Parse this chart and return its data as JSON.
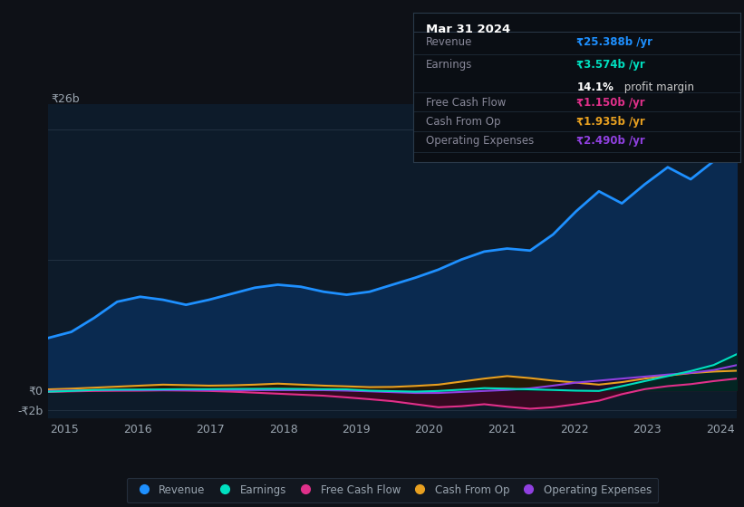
{
  "bg_color": "#0e1117",
  "plot_bg_color": "#0d1b2a",
  "grid_color": "#253545",
  "text_color": "#9aa5b0",
  "ylim": [
    -2.8,
    28.5
  ],
  "xtick_labels": [
    "2015",
    "2016",
    "2017",
    "2018",
    "2019",
    "2020",
    "2021",
    "2022",
    "2023",
    "2024"
  ],
  "revenue": [
    5.2,
    5.8,
    7.2,
    8.8,
    9.3,
    9.0,
    8.5,
    9.0,
    9.6,
    10.2,
    10.5,
    10.3,
    9.8,
    9.5,
    9.8,
    10.5,
    11.2,
    12.0,
    13.0,
    13.8,
    14.1,
    13.9,
    15.5,
    17.8,
    19.8,
    18.6,
    20.5,
    22.2,
    21.0,
    22.8,
    25.4
  ],
  "earnings": [
    -0.15,
    -0.08,
    0.02,
    0.05,
    0.06,
    0.08,
    0.1,
    0.1,
    0.12,
    0.13,
    0.14,
    0.12,
    0.1,
    0.08,
    -0.05,
    -0.1,
    -0.15,
    -0.08,
    0.05,
    0.2,
    0.15,
    0.08,
    0.02,
    -0.05,
    -0.08,
    0.4,
    0.9,
    1.4,
    1.9,
    2.5,
    3.574
  ],
  "free_cash_flow": [
    -0.18,
    -0.12,
    -0.08,
    -0.06,
    -0.05,
    -0.02,
    -0.04,
    -0.08,
    -0.15,
    -0.25,
    -0.35,
    -0.45,
    -0.55,
    -0.72,
    -0.9,
    -1.1,
    -1.4,
    -1.7,
    -1.6,
    -1.4,
    -1.65,
    -1.85,
    -1.7,
    -1.4,
    -1.05,
    -0.4,
    0.1,
    0.4,
    0.6,
    0.9,
    1.15
  ],
  "cash_from_op": [
    0.08,
    0.15,
    0.25,
    0.35,
    0.45,
    0.55,
    0.5,
    0.45,
    0.48,
    0.55,
    0.65,
    0.55,
    0.45,
    0.38,
    0.3,
    0.32,
    0.42,
    0.55,
    0.85,
    1.15,
    1.4,
    1.2,
    0.95,
    0.75,
    0.55,
    0.8,
    1.15,
    1.45,
    1.7,
    1.85,
    1.935
  ],
  "operating_expenses": [
    -0.08,
    -0.04,
    0.0,
    0.0,
    0.0,
    0.0,
    0.0,
    0.0,
    0.0,
    0.0,
    0.0,
    0.0,
    0.0,
    -0.05,
    -0.12,
    -0.2,
    -0.28,
    -0.28,
    -0.18,
    -0.08,
    0.02,
    0.18,
    0.45,
    0.75,
    0.95,
    1.15,
    1.35,
    1.55,
    1.72,
    2.0,
    2.49
  ],
  "revenue_color": "#1e90ff",
  "revenue_fill": "#0a2a50",
  "earnings_color": "#00e0c0",
  "earnings_fill": "#002a22",
  "fcf_color": "#e0308a",
  "fcf_fill": "#3a0820",
  "cfo_color": "#e8a020",
  "cfo_fill": "#2a1800",
  "opex_color": "#9040e0",
  "opex_fill": "#1a0a30",
  "tooltip_bg": "#0a0e14",
  "tooltip_border": "#2a3a4a",
  "tooltip_date": "Mar 31 2024",
  "tooltip_revenue_val": "₹25.388b /yr",
  "tooltip_earnings_val": "₹3.574b /yr",
  "tooltip_margin_bold": "14.1%",
  "tooltip_margin_rest": " profit margin",
  "tooltip_fcf_val": "₹1.150b /yr",
  "tooltip_cfo_val": "₹1.935b /yr",
  "tooltip_opex_val": "₹2.490b /yr",
  "legend_items": [
    {
      "label": "Revenue",
      "color": "#1e90ff"
    },
    {
      "label": "Earnings",
      "color": "#00e0c0"
    },
    {
      "label": "Free Cash Flow",
      "color": "#e0308a"
    },
    {
      "label": "Cash From Op",
      "color": "#e8a020"
    },
    {
      "label": "Operating Expenses",
      "color": "#9040e0"
    }
  ]
}
